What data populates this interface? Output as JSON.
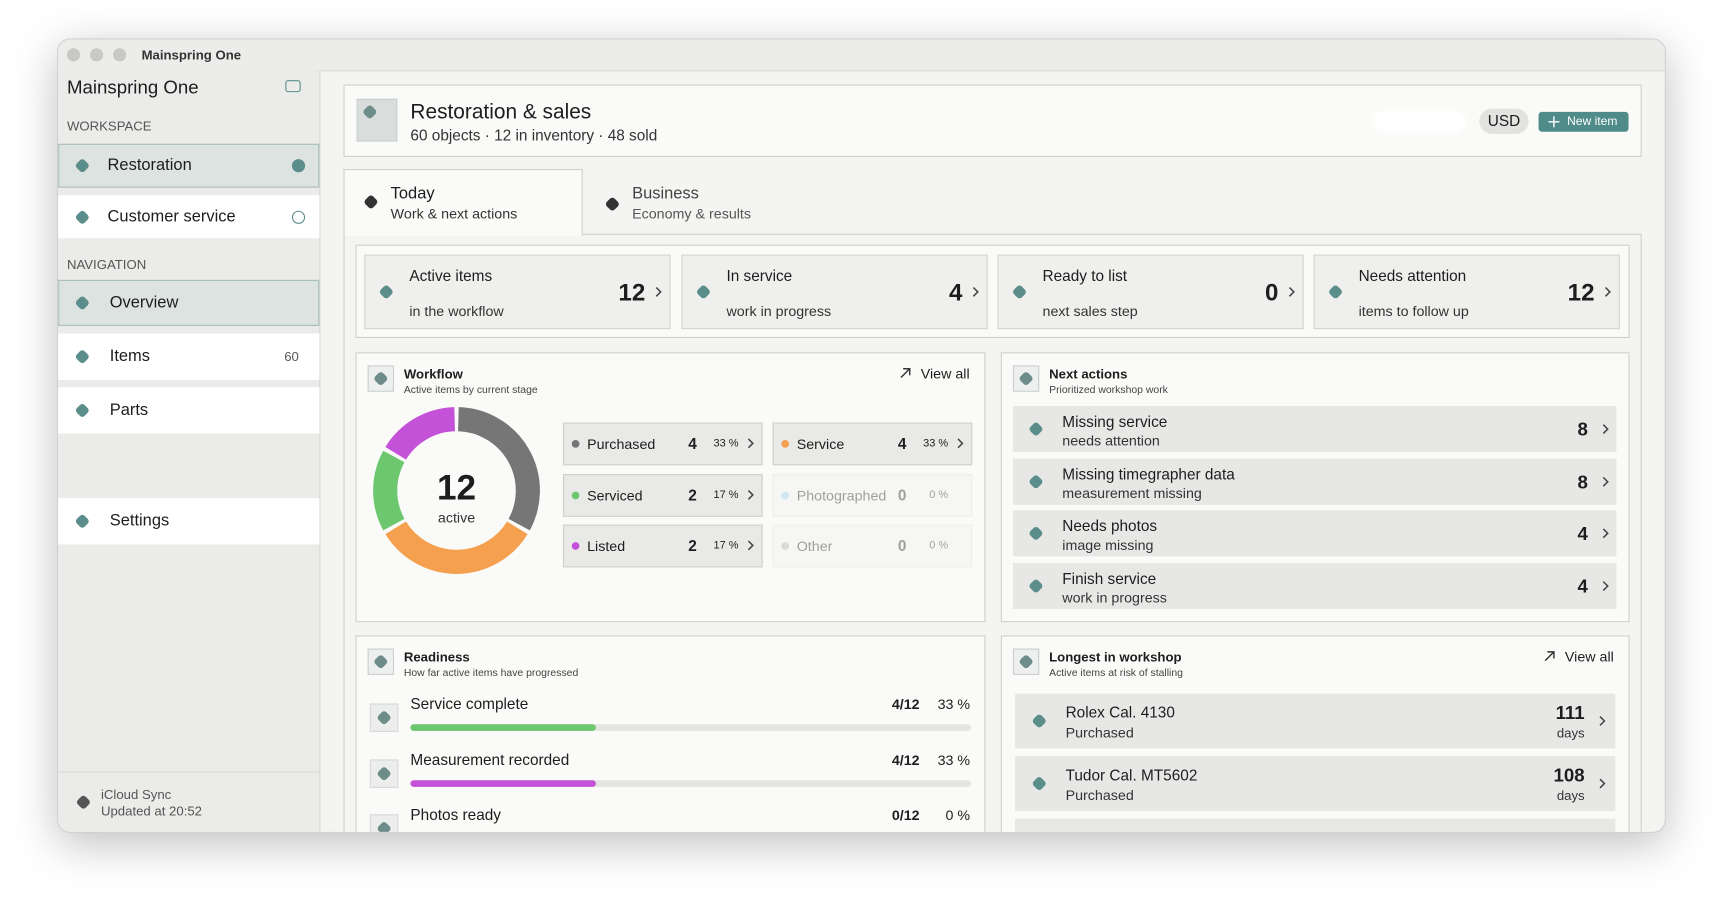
{
  "window_title": "Mainspring One",
  "sidebar": {
    "app_name": "Mainspring One",
    "workspace_heading": "WORKSPACE",
    "workspaces": [
      {
        "label": "Restoration"
      },
      {
        "label": "Customer service"
      }
    ],
    "navigation_heading": "NAVIGATION",
    "nav": [
      {
        "label": "Overview"
      },
      {
        "label": "Items",
        "badge": "60"
      },
      {
        "label": "Parts"
      }
    ],
    "settings": "Settings",
    "sync": {
      "title": "iCloud Sync",
      "status": "Updated at 20:52"
    }
  },
  "header": {
    "title": "Restoration & sales",
    "subtitle": "60 objects · 12 in inventory · 48 sold",
    "currency": "USD",
    "new_item": "New item"
  },
  "tabs": [
    {
      "title": "Today",
      "subtitle": "Work & next actions"
    },
    {
      "title": "Business",
      "subtitle": "Economy & results"
    }
  ],
  "kpis": [
    {
      "title": "Active items",
      "subtitle": "in the workflow",
      "value": 12
    },
    {
      "title": "In service",
      "subtitle": "work in progress",
      "value": 4
    },
    {
      "title": "Ready to list",
      "subtitle": "next sales step",
      "value": 0
    },
    {
      "title": "Needs attention",
      "subtitle": "items to follow up",
      "value": 12
    }
  ],
  "workflow": {
    "title": "Workflow",
    "subtitle": "Active items by current stage",
    "view_all": "View all",
    "total": 12,
    "total_label": "active",
    "stages": [
      {
        "name": "Purchased",
        "count": 4,
        "percent": "33 %",
        "color": "#767676"
      },
      {
        "name": "Service",
        "count": 4,
        "percent": "33 %",
        "color": "#f4a04f"
      },
      {
        "name": "Serviced",
        "count": 2,
        "percent": "17 %",
        "color": "#6cc76f"
      },
      {
        "name": "Photographed",
        "count": 0,
        "percent": "0 %",
        "color": "#a9d3ef"
      },
      {
        "name": "Listed",
        "count": 2,
        "percent": "17 %",
        "color": "#c452d8"
      },
      {
        "name": "Other",
        "count": 0,
        "percent": "0 %",
        "color": "#bbbbbb"
      }
    ]
  },
  "next_actions": {
    "title": "Next actions",
    "subtitle": "Prioritized workshop work",
    "items": [
      {
        "label": "Missing service",
        "detail": "needs attention",
        "count": 8
      },
      {
        "label": "Missing timegrapher data",
        "detail": "measurement missing",
        "count": 8
      },
      {
        "label": "Needs photos",
        "detail": "image missing",
        "count": 4
      },
      {
        "label": "Finish service",
        "detail": "work in progress",
        "count": 4
      }
    ]
  },
  "readiness": {
    "title": "Readiness",
    "subtitle": "How far active items have progressed",
    "items": [
      {
        "label": "Service complete",
        "fraction": "4/12",
        "percent": 33,
        "percent_label": "33 %",
        "color": "#6cc76f"
      },
      {
        "label": "Measurement recorded",
        "fraction": "4/12",
        "percent": 33,
        "percent_label": "33 %",
        "color": "#c452d8"
      },
      {
        "label": "Photos ready",
        "fraction": "0/12",
        "percent": 0,
        "percent_label": "0 %",
        "color": "#6cc76f"
      }
    ]
  },
  "longest": {
    "title": "Longest in workshop",
    "subtitle": "Active items at risk of stalling",
    "view_all": "View all",
    "items": [
      {
        "name": "Rolex Cal. 4130",
        "stage": "Purchased",
        "days": 111,
        "unit": "days"
      },
      {
        "name": "Tudor Cal. MT5602",
        "stage": "Purchased",
        "days": 108,
        "unit": "days"
      }
    ]
  }
}
